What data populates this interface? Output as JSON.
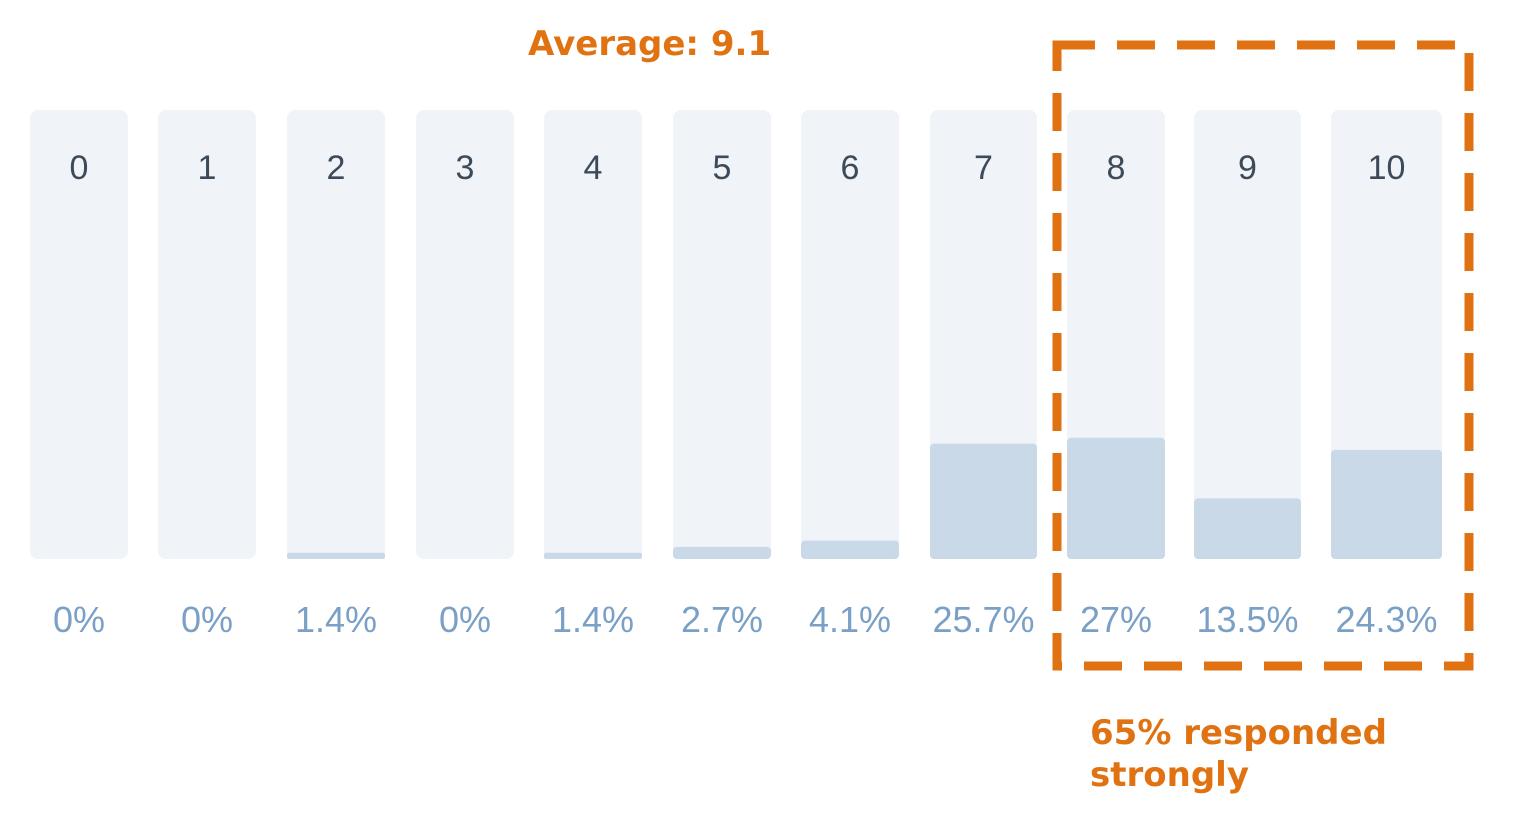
{
  "chart_data": {
    "type": "bar",
    "categories": [
      "0",
      "1",
      "2",
      "3",
      "4",
      "5",
      "6",
      "7",
      "8",
      "9",
      "10"
    ],
    "values": [
      0,
      0,
      1.4,
      0,
      1.4,
      2.7,
      4.1,
      25.7,
      27,
      13.5,
      24.3
    ],
    "value_labels": [
      "0%",
      "0%",
      "1.4%",
      "0%",
      "1.4%",
      "2.7%",
      "4.1%",
      "25.7%",
      "27%",
      "13.5%",
      "24.3%"
    ],
    "ylim": [
      0,
      100
    ],
    "grid": false,
    "legend": "none",
    "annotations": {
      "average": "Average: 9.1",
      "highlight_note": "65% responded strongly",
      "highlight_categories": [
        "8",
        "9",
        "10"
      ]
    },
    "colors": {
      "track": "#f0f3f8",
      "fill": "#c9d9e8",
      "accent": "#e07212",
      "category_text": "#3c4a5a",
      "value_text": "#7aa0c6"
    }
  }
}
